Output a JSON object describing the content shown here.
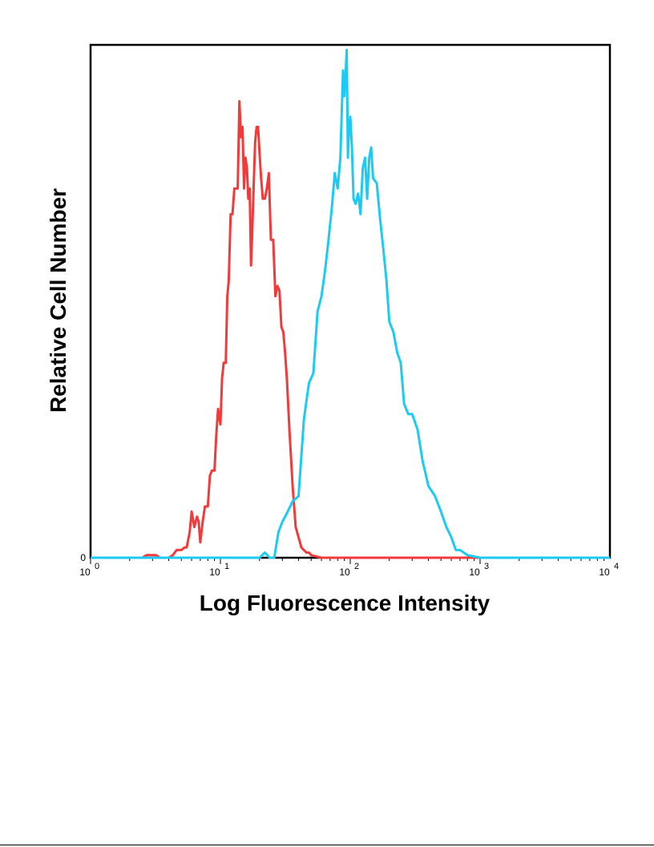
{
  "chart_data": {
    "type": "line",
    "title": "",
    "xlabel": "Log Fluorescence Intensity",
    "ylabel": "Relative Cell Number",
    "x_scale": "log",
    "xlim": [
      1,
      10000
    ],
    "ylim": [
      0,
      100
    ],
    "x_ticks": [
      {
        "base": "10",
        "exp": "0",
        "value": 1
      },
      {
        "base": "10",
        "exp": "1",
        "value": 10
      },
      {
        "base": "10",
        "exp": "2",
        "value": 100
      },
      {
        "base": "10",
        "exp": "3",
        "value": 1000
      },
      {
        "base": "10",
        "exp": "4",
        "value": 10000
      }
    ],
    "y_ticks": [
      {
        "label": "0",
        "value": 0
      }
    ],
    "grid": false,
    "series": [
      {
        "color": "#f23a3a",
        "x": [
          1,
          2,
          2.5,
          2.7,
          2.8,
          3.0,
          3.2,
          3.4,
          3.6,
          3.8,
          4.0,
          4.3,
          4.6,
          4.8,
          5.0,
          5.3,
          5.5,
          5.8,
          6.0,
          6.3,
          6.6,
          6.8,
          7.0,
          7.3,
          7.6,
          8.0,
          8.3,
          8.6,
          9.0,
          9.3,
          9.6,
          10.0,
          10.3,
          10.6,
          11.0,
          11.3,
          11.6,
          12.0,
          12.4,
          12.8,
          13.2,
          13.6,
          14.0,
          14.4,
          14.8,
          15.2,
          15.6,
          16.0,
          16.4,
          16.8,
          17.2,
          17.6,
          18.0,
          18.5,
          19.0,
          19.5,
          20.0,
          20.6,
          21.2,
          22.0,
          22.8,
          23.6,
          24.5,
          25.5,
          26.5,
          27.5,
          28.5,
          29.5,
          30.5,
          31.5,
          32.5,
          34.0,
          36.0,
          38.0,
          40.0,
          42.0,
          44.0,
          46.0,
          48.0,
          50.0,
          60.0,
          100,
          1000,
          10000
        ],
        "y": [
          0,
          0,
          0,
          0.5,
          0.5,
          0.5,
          0.5,
          0,
          0,
          0,
          0,
          0.5,
          1.5,
          1.5,
          1.5,
          2,
          2,
          5,
          9,
          6,
          8,
          7,
          3,
          7,
          10,
          10,
          16,
          17,
          17,
          24,
          29,
          26,
          35,
          38,
          38,
          51,
          54,
          67,
          67,
          72,
          72,
          72,
          89,
          82,
          84,
          72,
          78,
          76,
          70,
          72,
          57,
          64,
          72,
          81,
          84,
          84,
          79,
          74,
          70,
          70,
          72,
          75,
          62,
          62,
          51,
          53,
          52,
          45,
          44,
          40,
          35,
          25,
          14,
          6,
          4,
          2,
          1.5,
          1,
          1,
          0.5,
          0,
          0,
          0,
          0
        ]
      },
      {
        "color": "#1ccaf2",
        "x": [
          1,
          10,
          15,
          20,
          22,
          24,
          26,
          28,
          30,
          33,
          36,
          40,
          44,
          48,
          52,
          56,
          60,
          64,
          68,
          72,
          76,
          80,
          84,
          88,
          90,
          92,
          94,
          96,
          98,
          100,
          103,
          106,
          110,
          115,
          120,
          125,
          130,
          135,
          140,
          145,
          150,
          160,
          170,
          180,
          190,
          200,
          215,
          230,
          245,
          260,
          280,
          300,
          330,
          360,
          400,
          450,
          500,
          550,
          600,
          650,
          700,
          800,
          1000,
          10000
        ],
        "y": [
          0,
          0,
          0,
          0,
          1,
          0,
          0,
          5,
          7,
          9,
          11,
          12,
          27,
          34,
          36,
          48,
          51,
          56,
          62,
          68,
          75,
          72,
          78,
          95,
          90,
          94,
          99,
          78,
          84,
          86,
          80,
          70,
          69,
          71,
          67,
          76,
          78,
          70,
          78,
          80,
          74,
          73,
          66,
          60,
          54,
          46,
          44,
          40,
          38,
          30,
          28,
          28,
          25,
          19,
          14,
          12,
          9,
          6,
          4,
          1.5,
          1.5,
          0.5,
          0,
          0
        ]
      }
    ]
  }
}
